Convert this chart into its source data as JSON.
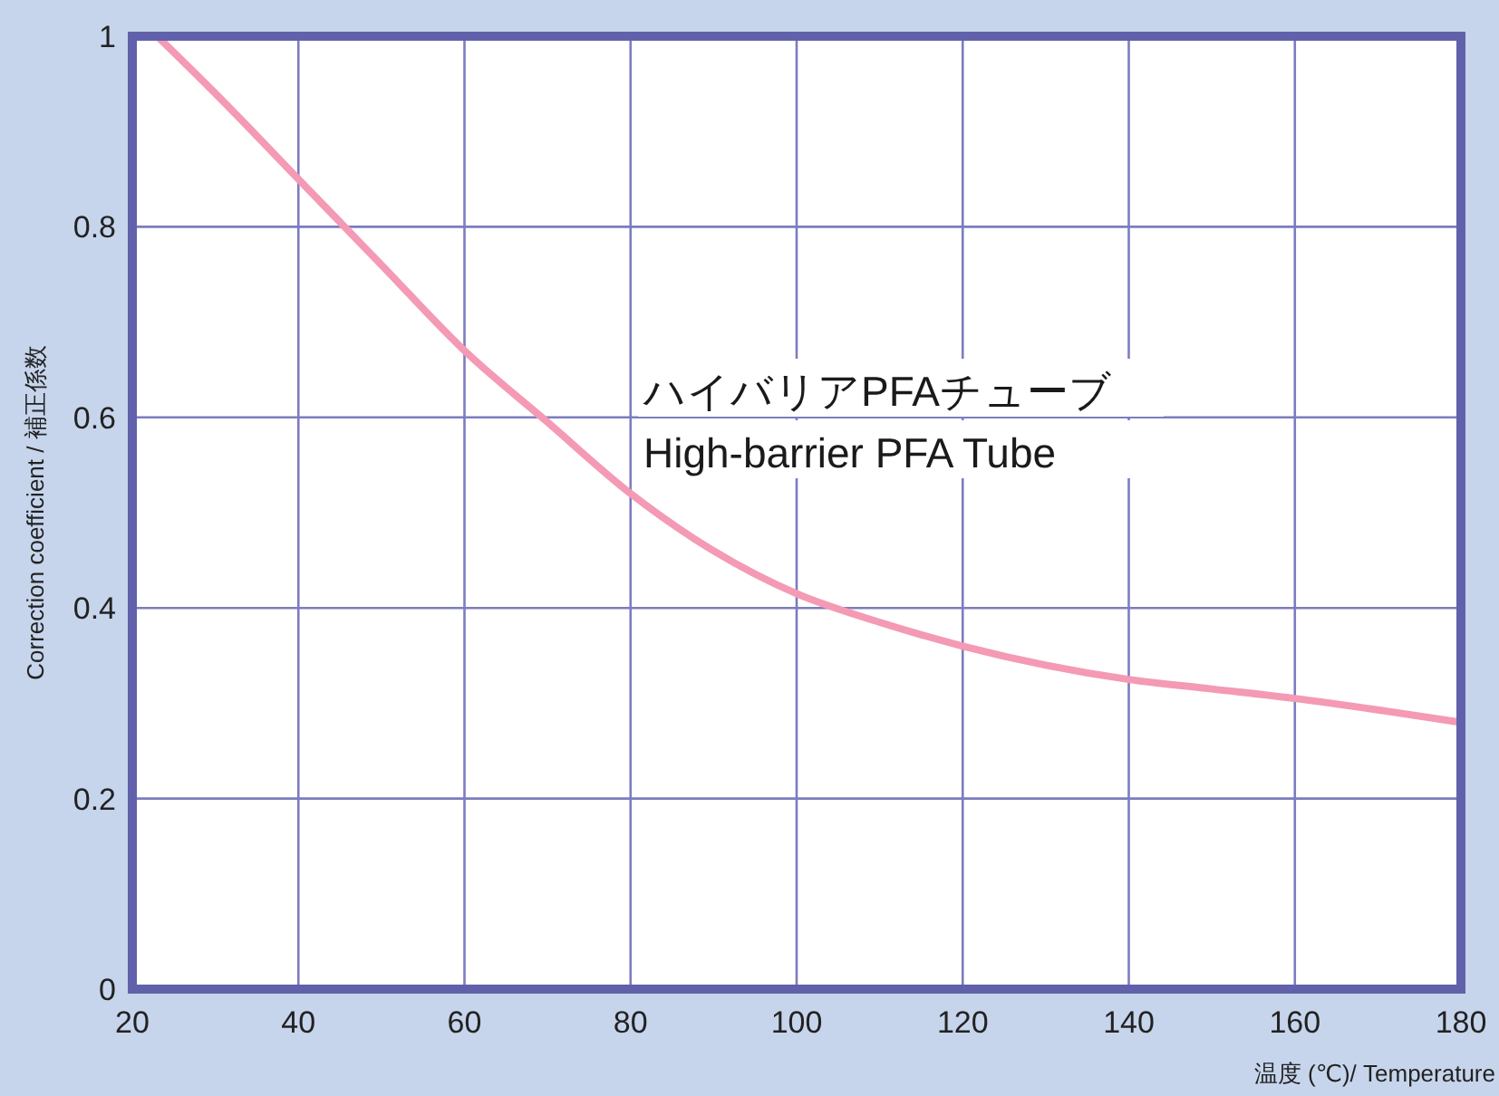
{
  "chart_data": {
    "type": "line",
    "xlabel": "温度 (℃)/ Temperature",
    "ylabel": "Correction coefficient / 補正係数",
    "x": [
      23,
      30,
      40,
      50,
      60,
      70,
      80,
      90,
      100,
      110,
      120,
      130,
      140,
      150,
      160,
      170,
      180
    ],
    "series": [
      {
        "color": "#f49ab4",
        "values": [
          1.0,
          0.94,
          0.85,
          0.76,
          0.67,
          0.595,
          0.52,
          0.46,
          0.415,
          0.385,
          0.36,
          0.34,
          0.325,
          0.315,
          0.305,
          0.293,
          0.28
        ]
      }
    ],
    "annotations": [
      "ハイバリアPFAチューブ",
      "High-barrier PFA Tube"
    ],
    "xlim": [
      20,
      180
    ],
    "xticks": [
      20,
      40,
      60,
      80,
      100,
      120,
      140,
      160,
      180
    ],
    "ylim": [
      0,
      1
    ],
    "yticks": [
      0,
      0.2,
      0.4,
      0.6,
      0.8,
      1
    ],
    "grid": true,
    "marker": "none",
    "line_style": "solid"
  }
}
